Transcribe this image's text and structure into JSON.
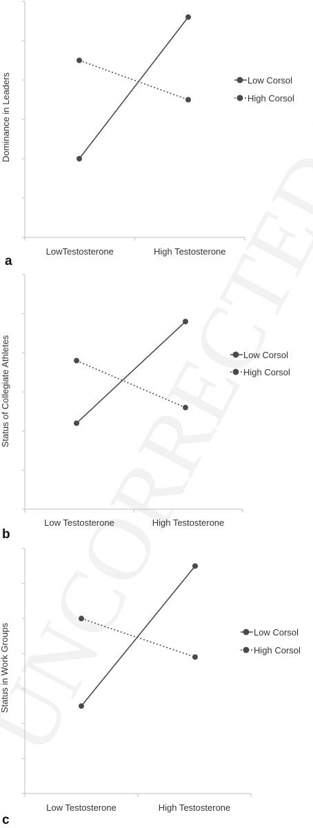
{
  "colors": {
    "axis": "#bfbfbf",
    "series": "#4a4a4a",
    "text": "#333333",
    "panel_letter": "#111111"
  },
  "watermark": "UNCORRECTED PROOF",
  "chart_data": [
    {
      "type": "line",
      "panel_label": "a",
      "title": "",
      "xlabel": "",
      "ylabel": "Dominance in Leaders",
      "categories": [
        "LowTestosterone",
        "High Testosterone"
      ],
      "ylim": [
        0,
        6
      ],
      "ytick_count": 7,
      "show_ytick_labels": false,
      "grid": false,
      "legend_position": "right",
      "series": [
        {
          "name": "Low Corsol",
          "style": "solid",
          "values": [
            2.0,
            5.6
          ]
        },
        {
          "name": "High Corsol",
          "style": "dotted",
          "values": [
            4.5,
            3.5
          ]
        }
      ]
    },
    {
      "type": "line",
      "panel_label": "b",
      "title": "",
      "xlabel": "",
      "ylabel": "Status of Collegiate Athletes",
      "categories": [
        "Low Testosterone",
        "High Testosterone"
      ],
      "ylim": [
        0,
        6
      ],
      "ytick_count": 7,
      "show_ytick_labels": false,
      "grid": false,
      "legend_position": "right",
      "series": [
        {
          "name": "Low Corsol",
          "style": "solid",
          "values": [
            2.2,
            4.8
          ]
        },
        {
          "name": "High Corsol",
          "style": "dotted",
          "values": [
            3.8,
            2.6
          ]
        }
      ]
    },
    {
      "type": "line",
      "panel_label": "c",
      "title": "",
      "xlabel": "",
      "ylabel": "Status in Work Groups",
      "categories": [
        "Low Testosterone",
        "High Testosterone"
      ],
      "ylim": [
        0,
        7
      ],
      "ytick_count": 8,
      "show_ytick_labels": false,
      "grid": false,
      "legend_position": "right",
      "series": [
        {
          "name": "Low Corsol",
          "style": "solid",
          "values": [
            2.5,
            6.5
          ]
        },
        {
          "name": "High Corsol",
          "style": "dotted",
          "values": [
            5.0,
            3.9
          ]
        }
      ]
    }
  ]
}
